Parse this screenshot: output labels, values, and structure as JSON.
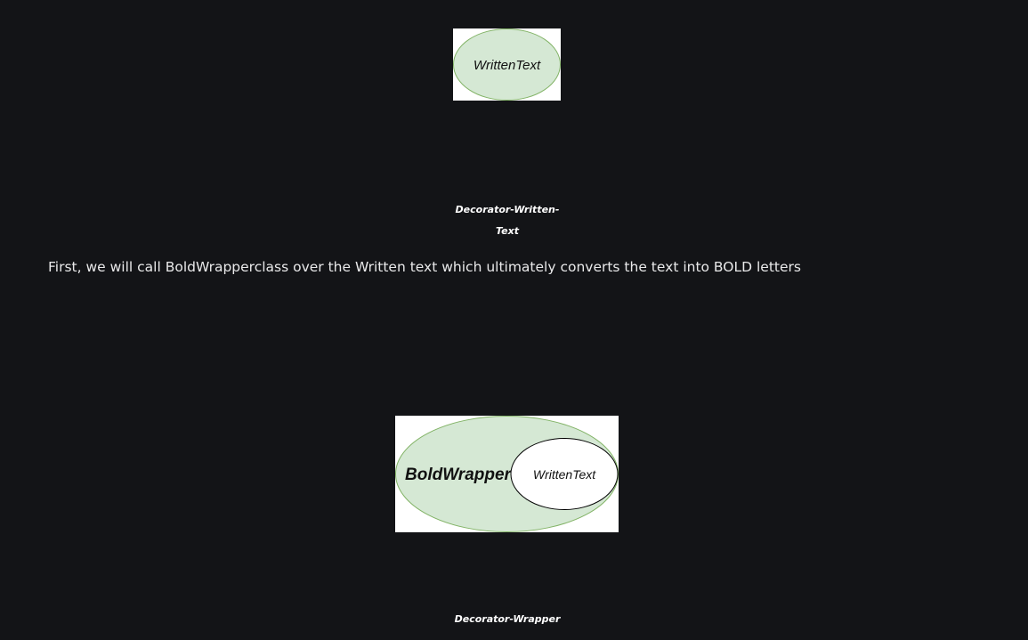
{
  "figure1": {
    "ellipse_label": "WrittenText",
    "caption_lines": [
      "Decorator-Written-",
      "Text"
    ]
  },
  "paragraph": {
    "text": "First, we will call BoldWrapperclass over the Written text which ultimately converts the text into BOLD letters"
  },
  "figure2": {
    "outer_label": "BoldWrapper",
    "inner_label": "WrittenText",
    "caption": "Decorator-Wrapper"
  },
  "colors": {
    "background": "#131417",
    "ellipse_fill": "#d5e8d4",
    "ellipse_stroke": "#82b366",
    "inner_ellipse_fill": "#ffffff",
    "inner_ellipse_stroke": "#000000",
    "text": "#e9e9ea"
  }
}
